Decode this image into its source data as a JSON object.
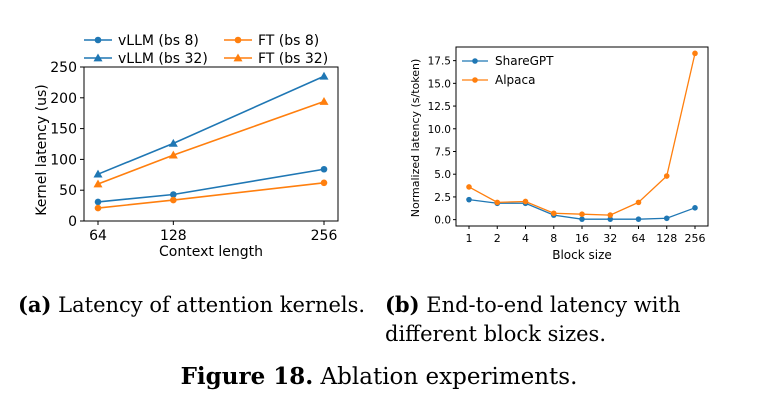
{
  "chart_data": [
    {
      "type": "line",
      "panel": "a",
      "xlabel": "Context length",
      "ylabel": "Kernel latency (us)",
      "x": [
        64,
        128,
        256
      ],
      "x_tick_labels": [
        "64",
        "128",
        "256"
      ],
      "ylim": [
        0,
        250
      ],
      "y_ticks": [
        0,
        50,
        100,
        150,
        200,
        250
      ],
      "grid": false,
      "legend_position": "top (above plot, 2 columns)",
      "series": [
        {
          "name": "vLLM (bs 8)",
          "color": "#1f77b4",
          "marker": "circle",
          "values": [
            31,
            43,
            84
          ]
        },
        {
          "name": "vLLM (bs 32)",
          "color": "#1f77b4",
          "marker": "triangle",
          "values": [
            76,
            126,
            235
          ]
        },
        {
          "name": "FT (bs 8)",
          "color": "#ff7f0e",
          "marker": "circle",
          "values": [
            21,
            34,
            62
          ]
        },
        {
          "name": "FT (bs 32)",
          "color": "#ff7f0e",
          "marker": "triangle",
          "values": [
            60,
            107,
            194
          ]
        }
      ]
    },
    {
      "type": "line",
      "panel": "b",
      "xlabel": "Block size",
      "ylabel": "Normalized latency (s/token)",
      "x": [
        1,
        2,
        4,
        8,
        16,
        32,
        64,
        128,
        256
      ],
      "x_tick_labels": [
        "1",
        "2",
        "4",
        "8",
        "16",
        "32",
        "64",
        "128",
        "256"
      ],
      "ylim": [
        -0.7,
        19.0
      ],
      "y_ticks": [
        0.0,
        2.5,
        5.0,
        7.5,
        10.0,
        12.5,
        15.0,
        17.5
      ],
      "y_tick_labels": [
        "0.0",
        "2.5",
        "5.0",
        "7.5",
        "10.0",
        "12.5",
        "15.0",
        "17.5"
      ],
      "grid": false,
      "legend_position": "top-left",
      "series": [
        {
          "name": "ShareGPT",
          "color": "#1f77b4",
          "marker": "circle",
          "values": [
            2.2,
            1.8,
            1.8,
            0.5,
            0.05,
            0.05,
            0.05,
            0.15,
            1.3
          ]
        },
        {
          "name": "Alpaca",
          "color": "#ff7f0e",
          "marker": "circle",
          "values": [
            3.6,
            1.9,
            2.0,
            0.7,
            0.6,
            0.5,
            1.9,
            4.8,
            18.3
          ]
        }
      ]
    }
  ],
  "captions": {
    "a_label": "(a)",
    "a_text": " Latency of attention kernels.",
    "b_label": "(b)",
    "b_text": " End-to-end latency with different block sizes.",
    "figure_label": "Figure 18.",
    "figure_text": " Ablation experiments."
  }
}
